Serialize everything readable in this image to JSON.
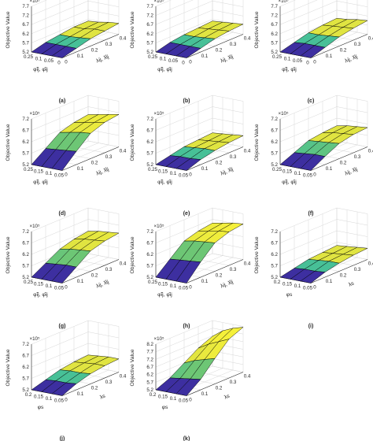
{
  "figure": {
    "color_low": "#3d2fa0",
    "color_mid": "#3fbf9e",
    "color_high": "#f5f03a",
    "grid": true
  },
  "chart_data": [
    {
      "type": "surface",
      "caption": "(a)",
      "exponent": "×10⁵",
      "zlabel": "Objective Value",
      "xlabel": "φ̃ij, φ̂ij",
      "ylabel": "λij, λ̂ij",
      "zticks": [
        "5.2",
        "5.7",
        "6.2",
        "6.7",
        "7.2",
        "7.7"
      ],
      "xticks": [
        "0.25",
        "0.1",
        "0.05",
        "0"
      ],
      "yticks": [
        "0",
        "0.1",
        "0.2",
        "0.3",
        "0.4"
      ],
      "zlim": [
        5.2,
        7.7
      ],
      "z": [
        [
          5.2,
          5.2,
          5.2,
          5.2
        ],
        [
          5.4,
          5.4,
          5.4,
          5.4
        ],
        [
          5.5,
          5.5,
          5.55,
          5.6
        ],
        [
          5.6,
          5.6,
          5.7,
          5.7
        ],
        [
          5.6,
          5.65,
          5.75,
          5.8
        ]
      ]
    },
    {
      "type": "surface",
      "caption": "(b)",
      "exponent": "×10⁵",
      "zlabel": "Objective Value",
      "xlabel": "φ̃ij, φ̂ij",
      "ylabel": "λij, λ̂ij",
      "zticks": [
        "5.2",
        "5.7",
        "6.2",
        "6.7",
        "7.2",
        "7.7"
      ],
      "xticks": [
        "0.25",
        "0.1",
        "0.05",
        "0"
      ],
      "yticks": [
        "0",
        "0.1",
        "0.2",
        "0.3",
        "0.4"
      ],
      "zlim": [
        5.2,
        7.7
      ],
      "z": [
        [
          5.2,
          5.2,
          5.2,
          5.2
        ],
        [
          5.4,
          5.4,
          5.4,
          5.4
        ],
        [
          5.5,
          5.5,
          5.55,
          5.6
        ],
        [
          5.55,
          5.6,
          5.65,
          5.7
        ],
        [
          5.6,
          5.65,
          5.7,
          5.75
        ]
      ]
    },
    {
      "type": "surface",
      "caption": "(c)",
      "exponent": "×10⁵",
      "zlabel": "Objective Value",
      "xlabel": "φ̃ij, φ̂ij",
      "ylabel": "λij, λ̂ij",
      "zticks": [
        "5.2",
        "5.7",
        "6.2",
        "6.7",
        "7.2",
        "7.7"
      ],
      "xticks": [
        "0.25",
        "0.1",
        "0.05",
        "0"
      ],
      "yticks": [
        "0",
        "0.1",
        "0.2",
        "0.3",
        "0.4"
      ],
      "zlim": [
        5.2,
        7.7
      ],
      "z": [
        [
          5.2,
          5.2,
          5.2,
          5.2
        ],
        [
          5.4,
          5.45,
          5.45,
          5.45
        ],
        [
          5.6,
          5.6,
          5.65,
          5.7
        ],
        [
          5.7,
          5.75,
          5.8,
          5.85
        ],
        [
          5.75,
          5.8,
          5.9,
          5.95
        ]
      ]
    },
    {
      "type": "surface",
      "caption": "(d)",
      "exponent": "×10⁵",
      "zlabel": "Objective Value",
      "xlabel": "φ̃ij, φ̂ij",
      "ylabel": "λij, λ̂ij",
      "zticks": [
        "5.2",
        "5.7",
        "6.2",
        "6.7",
        "7.2"
      ],
      "xticks": [
        "0.25",
        "0.15",
        "0.1",
        "0.05"
      ],
      "yticks": [
        "0",
        "0.1",
        "0.2",
        "0.3",
        "0.4"
      ],
      "zlim": [
        5.2,
        7.45
      ],
      "z": [
        [
          5.2,
          5.2,
          5.2,
          5.2
        ],
        [
          5.7,
          5.75,
          5.8,
          5.85
        ],
        [
          6.2,
          6.3,
          6.4,
          6.45
        ],
        [
          6.4,
          6.5,
          6.6,
          6.7
        ],
        [
          6.5,
          6.6,
          6.7,
          6.8
        ]
      ]
    },
    {
      "type": "surface",
      "caption": "(e)",
      "exponent": "×10⁵",
      "zlabel": "Objective Value",
      "xlabel": "φ̃ij, φ̂ij",
      "ylabel": "λij, λ̂ij",
      "zticks": [
        "5.2",
        "5.7",
        "6.2",
        "6.7",
        "7.2"
      ],
      "xticks": [
        "0.25",
        "0.15",
        "0.1",
        "0.05"
      ],
      "yticks": [
        "0",
        "0.1",
        "0.2",
        "0.3",
        "0.4"
      ],
      "zlim": [
        5.2,
        7.45
      ],
      "z": [
        [
          5.2,
          5.2,
          5.2,
          5.2
        ],
        [
          5.35,
          5.4,
          5.4,
          5.45
        ],
        [
          5.5,
          5.55,
          5.6,
          5.6
        ],
        [
          5.55,
          5.6,
          5.65,
          5.7
        ],
        [
          5.6,
          5.65,
          5.7,
          5.75
        ]
      ]
    },
    {
      "type": "surface",
      "caption": "(f)",
      "exponent": "×10⁵",
      "zlabel": "Objective Value",
      "xlabel": "φ̃ij, φ̂ij",
      "ylabel": "λij, λ̂ij",
      "zticks": [
        "5.2",
        "5.7",
        "6.2",
        "6.7",
        "7.2"
      ],
      "xticks": [
        "0.25",
        "0.15",
        "0.1",
        "0.05"
      ],
      "yticks": [
        "0",
        "0.1",
        "0.2",
        "0.3",
        "0.4"
      ],
      "zlim": [
        5.2,
        7.45
      ],
      "z": [
        [
          5.2,
          5.2,
          5.2,
          5.2
        ],
        [
          5.5,
          5.55,
          5.6,
          5.6
        ],
        [
          5.8,
          5.85,
          5.9,
          5.95
        ],
        [
          5.9,
          6.0,
          6.05,
          6.1
        ],
        [
          5.95,
          6.05,
          6.1,
          6.15
        ]
      ]
    },
    {
      "type": "surface",
      "caption": "(g)",
      "exponent": "×10⁵",
      "zlabel": "Objective Value",
      "xlabel": "φ̃ij, φ̂ij",
      "ylabel": "λij, λ̂ij",
      "zticks": [
        "5.2",
        "5.7",
        "6.2",
        "6.7",
        "7.2"
      ],
      "xticks": [
        "0.25",
        "0.15",
        "0.1",
        "0.05"
      ],
      "yticks": [
        "0",
        "0.1",
        "0.2",
        "0.3",
        "0.4"
      ],
      "zlim": [
        5.2,
        7.45
      ],
      "z": [
        [
          5.2,
          5.2,
          5.2,
          5.2
        ],
        [
          5.6,
          5.65,
          5.7,
          5.7
        ],
        [
          6.0,
          6.1,
          6.15,
          6.2
        ],
        [
          6.2,
          6.3,
          6.35,
          6.4
        ],
        [
          6.3,
          6.4,
          6.45,
          6.5
        ]
      ]
    },
    {
      "type": "surface",
      "caption": "(h)",
      "exponent": "×10⁵",
      "zlabel": "Objective Value",
      "xlabel": "φ̃ij, φ̂ij",
      "ylabel": "λij, λ̂ij",
      "zticks": [
        "5.2",
        "5.7",
        "6.2",
        "6.7",
        "7.2"
      ],
      "xticks": [
        "0.25",
        "0.15",
        "0.1",
        "0.05"
      ],
      "yticks": [
        "0",
        "0.1",
        "0.2",
        "0.3",
        "0.4"
      ],
      "zlim": [
        5.2,
        7.45
      ],
      "z": [
        [
          5.2,
          5.2,
          5.2,
          5.2
        ],
        [
          5.8,
          5.85,
          5.9,
          5.95
        ],
        [
          6.4,
          6.5,
          6.55,
          6.6
        ],
        [
          6.6,
          6.7,
          6.8,
          6.85
        ],
        [
          6.7,
          6.8,
          6.9,
          6.95
        ]
      ]
    },
    {
      "type": "surface",
      "caption": "(i)",
      "exponent": "",
      "zlabel": "Objective Value",
      "xlabel": "φs",
      "ylabel": "λs",
      "zticks": [
        "5.2",
        "5.7",
        "6.2",
        "6.7",
        "7.2"
      ],
      "xticks": [
        "0.2",
        "0.15",
        "0.1",
        "0.05"
      ],
      "yticks": [
        "0",
        "0.1",
        "0.2",
        "0.3",
        "0.4"
      ],
      "zlim": [
        5.2,
        7.45
      ],
      "z": [
        [
          5.2,
          5.2,
          5.2,
          5.2
        ],
        [
          5.35,
          5.4,
          5.4,
          5.45
        ],
        [
          5.5,
          5.55,
          5.6,
          5.6
        ],
        [
          5.55,
          5.6,
          5.65,
          5.7
        ],
        [
          5.6,
          5.65,
          5.7,
          5.75
        ]
      ]
    },
    {
      "type": "surface",
      "caption": "(j)",
      "exponent": "×10⁵",
      "zlabel": "Objective Value",
      "xlabel": "φs",
      "ylabel": "λs",
      "zticks": [
        "5.2",
        "5.7",
        "6.2",
        "6.7",
        "7.2"
      ],
      "xticks": [
        "0.2",
        "0.15",
        "0.1",
        "0.05"
      ],
      "yticks": [
        "0",
        "0.1",
        "0.2",
        "0.3",
        "0.4"
      ],
      "zlim": [
        5.2,
        7.45
      ],
      "z": [
        [
          5.2,
          5.2,
          5.2,
          5.2
        ],
        [
          5.4,
          5.45,
          5.45,
          5.5
        ],
        [
          5.6,
          5.65,
          5.65,
          5.7
        ],
        [
          5.7,
          5.75,
          5.8,
          5.8
        ],
        [
          5.75,
          5.8,
          5.85,
          5.85
        ]
      ]
    },
    {
      "type": "surface",
      "caption": "(k)",
      "exponent": "×10⁵",
      "zlabel": "Objective Value",
      "xlabel": "φs",
      "ylabel": "λs",
      "zticks": [
        "5.2",
        "5.7",
        "6.2",
        "6.7",
        "7.2",
        "7.7",
        "8.2"
      ],
      "xticks": [
        "0.2",
        "0.15",
        "0.1",
        "0.05"
      ],
      "yticks": [
        "0",
        "0.1",
        "0.2",
        "0.3",
        "0.4"
      ],
      "zlim": [
        5.2,
        8.25
      ],
      "z": [
        [
          5.2,
          5.2,
          5.2,
          5.2
        ],
        [
          5.6,
          5.7,
          5.8,
          5.9
        ],
        [
          6.2,
          6.5,
          6.7,
          6.9
        ],
        [
          6.8,
          7.2,
          7.5,
          7.8
        ],
        [
          7.2,
          7.7,
          8.0,
          8.2
        ]
      ]
    }
  ]
}
